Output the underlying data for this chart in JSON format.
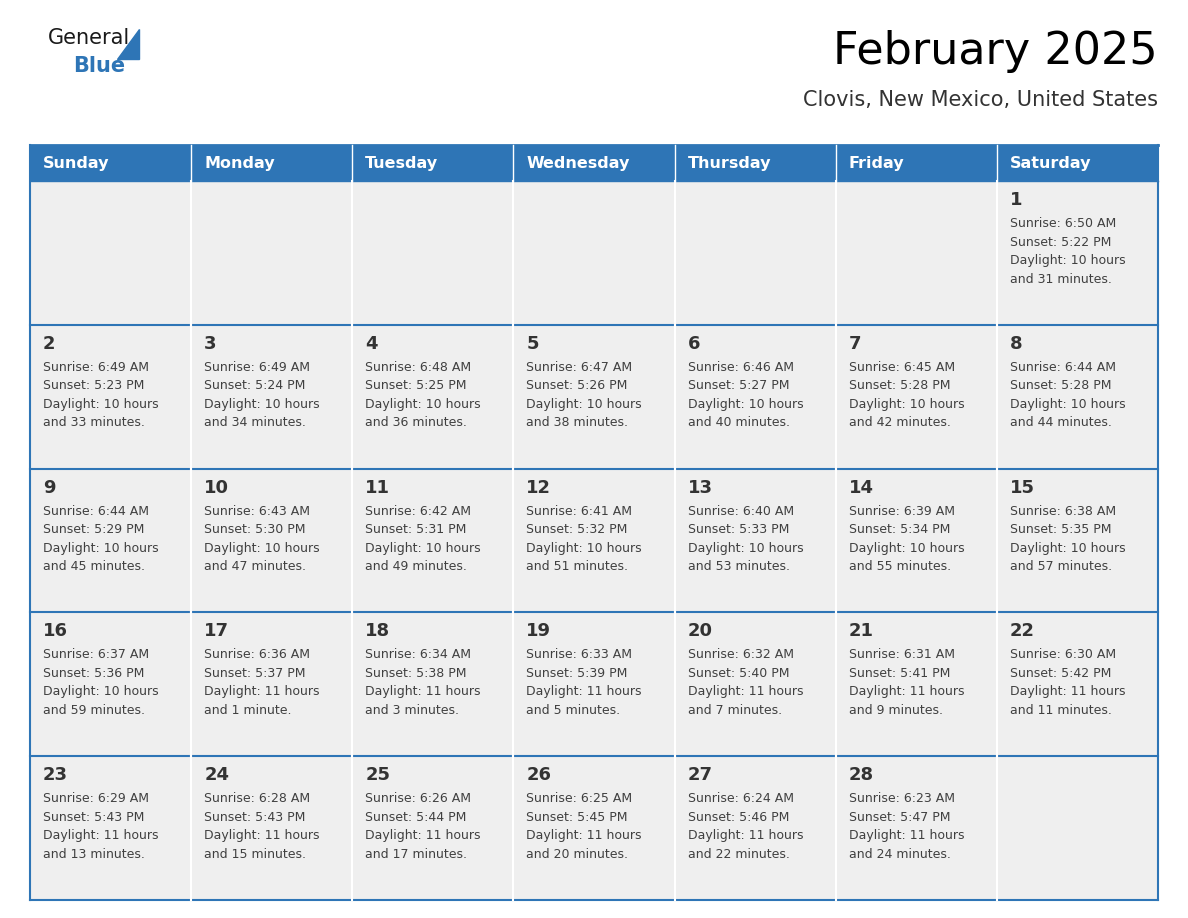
{
  "title": "February 2025",
  "subtitle": "Clovis, New Mexico, United States",
  "header_bg": "#2E75B6",
  "header_text_color": "#FFFFFF",
  "cell_bg": "#EFEFEF",
  "border_color": "#2E75B6",
  "text_color": "#404040",
  "day_number_color": "#333333",
  "days_of_week": [
    "Sunday",
    "Monday",
    "Tuesday",
    "Wednesday",
    "Thursday",
    "Friday",
    "Saturday"
  ],
  "weeks": [
    [
      {
        "day": null
      },
      {
        "day": null
      },
      {
        "day": null
      },
      {
        "day": null
      },
      {
        "day": null
      },
      {
        "day": null
      },
      {
        "day": 1,
        "sunrise": "6:50 AM",
        "sunset": "5:22 PM",
        "daylight": "10 hours and 31 minutes."
      }
    ],
    [
      {
        "day": 2,
        "sunrise": "6:49 AM",
        "sunset": "5:23 PM",
        "daylight": "10 hours and 33 minutes."
      },
      {
        "day": 3,
        "sunrise": "6:49 AM",
        "sunset": "5:24 PM",
        "daylight": "10 hours and 34 minutes."
      },
      {
        "day": 4,
        "sunrise": "6:48 AM",
        "sunset": "5:25 PM",
        "daylight": "10 hours and 36 minutes."
      },
      {
        "day": 5,
        "sunrise": "6:47 AM",
        "sunset": "5:26 PM",
        "daylight": "10 hours and 38 minutes."
      },
      {
        "day": 6,
        "sunrise": "6:46 AM",
        "sunset": "5:27 PM",
        "daylight": "10 hours and 40 minutes."
      },
      {
        "day": 7,
        "sunrise": "6:45 AM",
        "sunset": "5:28 PM",
        "daylight": "10 hours and 42 minutes."
      },
      {
        "day": 8,
        "sunrise": "6:44 AM",
        "sunset": "5:28 PM",
        "daylight": "10 hours and 44 minutes."
      }
    ],
    [
      {
        "day": 9,
        "sunrise": "6:44 AM",
        "sunset": "5:29 PM",
        "daylight": "10 hours and 45 minutes."
      },
      {
        "day": 10,
        "sunrise": "6:43 AM",
        "sunset": "5:30 PM",
        "daylight": "10 hours and 47 minutes."
      },
      {
        "day": 11,
        "sunrise": "6:42 AM",
        "sunset": "5:31 PM",
        "daylight": "10 hours and 49 minutes."
      },
      {
        "day": 12,
        "sunrise": "6:41 AM",
        "sunset": "5:32 PM",
        "daylight": "10 hours and 51 minutes."
      },
      {
        "day": 13,
        "sunrise": "6:40 AM",
        "sunset": "5:33 PM",
        "daylight": "10 hours and 53 minutes."
      },
      {
        "day": 14,
        "sunrise": "6:39 AM",
        "sunset": "5:34 PM",
        "daylight": "10 hours and 55 minutes."
      },
      {
        "day": 15,
        "sunrise": "6:38 AM",
        "sunset": "5:35 PM",
        "daylight": "10 hours and 57 minutes."
      }
    ],
    [
      {
        "day": 16,
        "sunrise": "6:37 AM",
        "sunset": "5:36 PM",
        "daylight": "10 hours and 59 minutes."
      },
      {
        "day": 17,
        "sunrise": "6:36 AM",
        "sunset": "5:37 PM",
        "daylight": "11 hours and 1 minute."
      },
      {
        "day": 18,
        "sunrise": "6:34 AM",
        "sunset": "5:38 PM",
        "daylight": "11 hours and 3 minutes."
      },
      {
        "day": 19,
        "sunrise": "6:33 AM",
        "sunset": "5:39 PM",
        "daylight": "11 hours and 5 minutes."
      },
      {
        "day": 20,
        "sunrise": "6:32 AM",
        "sunset": "5:40 PM",
        "daylight": "11 hours and 7 minutes."
      },
      {
        "day": 21,
        "sunrise": "6:31 AM",
        "sunset": "5:41 PM",
        "daylight": "11 hours and 9 minutes."
      },
      {
        "day": 22,
        "sunrise": "6:30 AM",
        "sunset": "5:42 PM",
        "daylight": "11 hours and 11 minutes."
      }
    ],
    [
      {
        "day": 23,
        "sunrise": "6:29 AM",
        "sunset": "5:43 PM",
        "daylight": "11 hours and 13 minutes."
      },
      {
        "day": 24,
        "sunrise": "6:28 AM",
        "sunset": "5:43 PM",
        "daylight": "11 hours and 15 minutes."
      },
      {
        "day": 25,
        "sunrise": "6:26 AM",
        "sunset": "5:44 PM",
        "daylight": "11 hours and 17 minutes."
      },
      {
        "day": 26,
        "sunrise": "6:25 AM",
        "sunset": "5:45 PM",
        "daylight": "11 hours and 20 minutes."
      },
      {
        "day": 27,
        "sunrise": "6:24 AM",
        "sunset": "5:46 PM",
        "daylight": "11 hours and 22 minutes."
      },
      {
        "day": 28,
        "sunrise": "6:23 AM",
        "sunset": "5:47 PM",
        "daylight": "11 hours and 24 minutes."
      },
      {
        "day": null
      }
    ]
  ],
  "logo_general_color": "#1a1a1a",
  "logo_blue_color": "#2E75B6",
  "logo_triangle_color": "#2E75B6",
  "info_fontsize": 9.0,
  "day_num_fontsize": 13.0,
  "header_fontsize": 11.5
}
